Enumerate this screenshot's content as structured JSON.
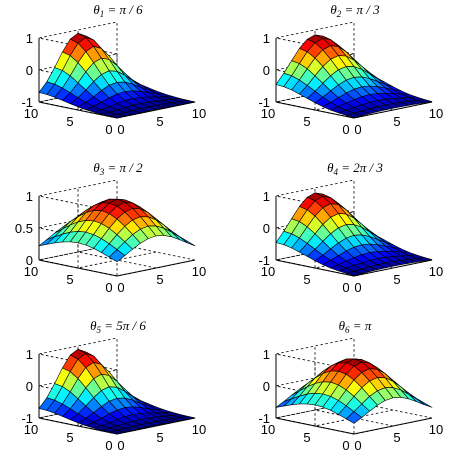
{
  "chart_data": [
    {
      "type": "surface",
      "title": {
        "symbol": "θ",
        "sub": "1",
        "rest": " = π / 6"
      },
      "xlim": [
        0,
        10
      ],
      "ylim": [
        0,
        10
      ],
      "zlim": [
        -1,
        1
      ],
      "xticks": [
        "0",
        "5",
        "10"
      ],
      "yticks": [
        "0",
        "5",
        "10"
      ],
      "zticks": [
        "-1",
        "0",
        "1"
      ],
      "surface": {
        "nx": 11,
        "ny": 11,
        "peak_x": 5,
        "peak_y": 10,
        "sigma": 2.6,
        "decay": 0.45,
        "z_min": -1,
        "z_max": 0.9
      }
    },
    {
      "type": "surface",
      "title": {
        "symbol": "θ",
        "sub": "2",
        "rest": " = π / 3"
      },
      "xlim": [
        0,
        10
      ],
      "ylim": [
        0,
        10
      ],
      "zlim": [
        -1,
        1
      ],
      "xticks": [
        "0",
        "5",
        "10"
      ],
      "yticks": [
        "0",
        "5",
        "10"
      ],
      "zticks": [
        "-1",
        "0",
        "1"
      ],
      "surface": {
        "nx": 11,
        "ny": 11,
        "peak_x": 5,
        "peak_y": 10,
        "sigma": 3.2,
        "decay": 0.35,
        "z_min": -1,
        "z_max": 0.85
      }
    },
    {
      "type": "surface",
      "title": {
        "symbol": "θ",
        "sub": "3",
        "rest": " = π / 2"
      },
      "xlim": [
        0,
        10
      ],
      "ylim": [
        0,
        10
      ],
      "zlim": [
        0,
        1
      ],
      "xticks": [
        "0",
        "5",
        "10"
      ],
      "yticks": [
        "0",
        "5",
        "10"
      ],
      "zticks": [
        "0",
        "0.5",
        "1"
      ],
      "surface": {
        "nx": 11,
        "ny": 11,
        "peak_x": 5,
        "peak_y": 5,
        "sigma": 3.6,
        "decay": 0,
        "z_min": 0.05,
        "z_max": 0.95
      }
    },
    {
      "type": "surface",
      "title": {
        "symbol": "θ",
        "sub": "4",
        "rest": " = 2π / 3"
      },
      "xlim": [
        0,
        10
      ],
      "ylim": [
        0,
        10
      ],
      "zlim": [
        -1,
        1
      ],
      "xticks": [
        "0",
        "5",
        "10"
      ],
      "yticks": [
        "0",
        "5",
        "10"
      ],
      "zticks": [
        "-1",
        "0",
        "1"
      ],
      "surface": {
        "nx": 11,
        "ny": 11,
        "peak_x": 5,
        "peak_y": 10,
        "sigma": 3.2,
        "decay": 0.35,
        "z_min": -1,
        "z_max": 0.85
      }
    },
    {
      "type": "surface",
      "title": {
        "symbol": "θ",
        "sub": "5",
        "rest": " = 5π / 6"
      },
      "xlim": [
        0,
        10
      ],
      "ylim": [
        0,
        10
      ],
      "zlim": [
        -1,
        1
      ],
      "xticks": [
        "0",
        "5",
        "10"
      ],
      "yticks": [
        "0",
        "5",
        "10"
      ],
      "zticks": [
        "-1",
        "0",
        "1"
      ],
      "surface": {
        "nx": 11,
        "ny": 11,
        "peak_x": 5,
        "peak_y": 10,
        "sigma": 2.6,
        "decay": 0.45,
        "z_min": -1,
        "z_max": 0.9
      }
    },
    {
      "type": "surface",
      "title": {
        "symbol": "θ",
        "sub": "6",
        "rest": " = π"
      },
      "xlim": [
        0,
        10
      ],
      "ylim": [
        0,
        10
      ],
      "zlim": [
        -1,
        1
      ],
      "xticks": [
        "0",
        "5",
        "10"
      ],
      "yticks": [
        "0",
        "5",
        "10"
      ],
      "zticks": [
        "-1",
        "0",
        "1"
      ],
      "surface": {
        "nx": 11,
        "ny": 11,
        "peak_x": 5,
        "peak_y": 5,
        "sigma": 3.4,
        "decay": 0,
        "z_min": -0.95,
        "z_max": 0.85
      }
    }
  ]
}
